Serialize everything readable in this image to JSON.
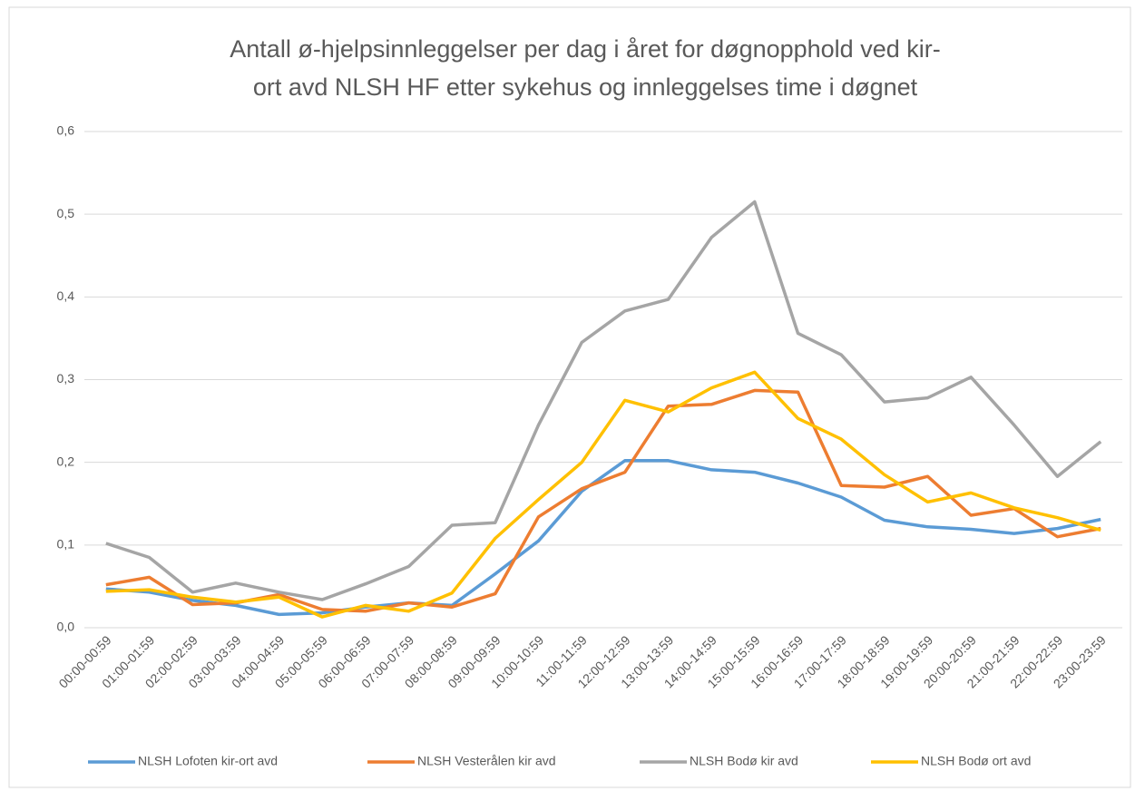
{
  "chart_data": {
    "type": "line",
    "title": [
      "Antall ø-hjelpsinnleggelser per dag i året for døgnopphold  ved kir-",
      "ort avd NLSH HF etter sykehus og innleggelses time i døgnet"
    ],
    "categories": [
      "00:00-00:59",
      "01:00-01:59",
      "02:00-02:59",
      "03:00-03:59",
      "04:00-04:59",
      "05:00-05:59",
      "06:00-06:59",
      "07:00-07:59",
      "08:00-08:59",
      "09:00-09:59",
      "10:00-10:59",
      "11:00-11:59",
      "12:00-12:59",
      "13:00-13:59",
      "14:00-14:59",
      "15:00-15:59",
      "16:00-16:59",
      "17:00-17:59",
      "18:00-18:59",
      "19:00-19:59",
      "20:00-20:59",
      "21:00-21:59",
      "22:00-22:59",
      "23:00-23:59"
    ],
    "series": [
      {
        "name": "NLSH Lofoten kir-ort avd",
        "color": "#5b9bd5",
        "values": [
          0.047,
          0.043,
          0.033,
          0.027,
          0.016,
          0.018,
          0.025,
          0.03,
          0.027,
          0.065,
          0.105,
          0.165,
          0.202,
          0.202,
          0.191,
          0.188,
          0.175,
          0.158,
          0.13,
          0.122,
          0.119,
          0.114,
          0.12,
          0.131
        ]
      },
      {
        "name": "NLSH Vesterålen kir avd",
        "color": "#ed7d31",
        "values": [
          0.052,
          0.061,
          0.028,
          0.03,
          0.04,
          0.022,
          0.02,
          0.03,
          0.025,
          0.041,
          0.134,
          0.168,
          0.188,
          0.268,
          0.27,
          0.287,
          0.285,
          0.172,
          0.17,
          0.183,
          0.136,
          0.144,
          0.11,
          0.12
        ]
      },
      {
        "name": "NLSH Bodø kir avd",
        "color": "#a5a5a5",
        "values": [
          0.102,
          0.085,
          0.043,
          0.054,
          0.043,
          0.034,
          0.053,
          0.074,
          0.124,
          0.127,
          0.245,
          0.345,
          0.383,
          0.397,
          0.472,
          0.515,
          0.356,
          0.33,
          0.273,
          0.278,
          0.303,
          0.245,
          0.183,
          0.225
        ]
      },
      {
        "name": "NLSH Bodø ort avd",
        "color": "#ffc000",
        "values": [
          0.044,
          0.046,
          0.037,
          0.031,
          0.037,
          0.013,
          0.027,
          0.02,
          0.042,
          0.108,
          0.155,
          0.2,
          0.275,
          0.261,
          0.29,
          0.309,
          0.253,
          0.228,
          0.185,
          0.152,
          0.163,
          0.145,
          0.133,
          0.118
        ]
      }
    ],
    "ylim": [
      0,
      0.6
    ],
    "yticks": [
      {
        "value": 0,
        "label": "0,0"
      },
      {
        "value": 0.1,
        "label": "0,1"
      },
      {
        "value": 0.2,
        "label": "0,2"
      },
      {
        "value": 0.3,
        "label": "0,3"
      },
      {
        "value": 0.4,
        "label": "0,4"
      },
      {
        "value": 0.5,
        "label": "0,5"
      },
      {
        "value": 0.6,
        "label": "0,6"
      }
    ],
    "grid": true,
    "legend": "bottom"
  }
}
